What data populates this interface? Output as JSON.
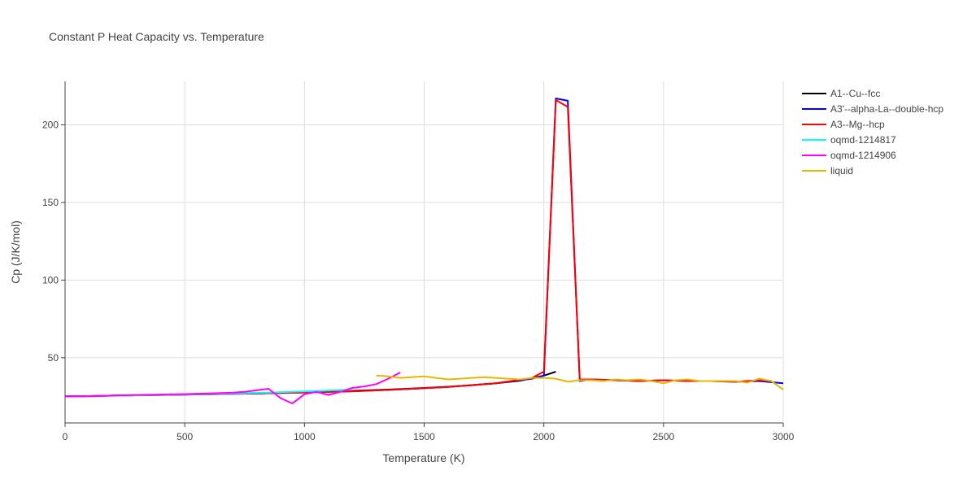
{
  "chart_data": {
    "type": "line",
    "title": "Constant P Heat Capacity vs. Temperature",
    "xlabel": "Temperature (K)",
    "ylabel": "Cp (J/K/mol)",
    "xlim": [
      0,
      3000
    ],
    "ylim": [
      8,
      228
    ],
    "xticks": [
      0,
      500,
      1000,
      1500,
      2000,
      2500,
      3000
    ],
    "yticks": [
      50,
      100,
      150,
      200
    ],
    "grid": true,
    "legend_position": "top-right",
    "series": [
      {
        "name": "A1--Cu--fcc",
        "color": "#000000",
        "x": [
          0,
          100,
          200,
          300,
          400,
          500,
          600,
          700,
          800,
          900,
          1000,
          1100,
          1200,
          1300,
          1400,
          1500,
          1600,
          1700,
          1800,
          1900,
          2000,
          2050
        ],
        "y": [
          25.2,
          25.3,
          25.6,
          25.8,
          26.1,
          26.3,
          26.6,
          26.9,
          27.2,
          27.5,
          27.9,
          28.3,
          28.7,
          29.2,
          29.8,
          30.5,
          31.3,
          32.3,
          33.5,
          35.2,
          38.5,
          41.0
        ]
      },
      {
        "name": "A3'--alpha-La--double-hcp",
        "color": "#0000ff",
        "x": [
          0,
          200,
          400,
          600,
          800,
          1000,
          1200,
          1400,
          1600,
          1800,
          1950,
          2000,
          2050,
          2100,
          2150,
          2200,
          2300,
          2400,
          2500,
          2600,
          2700,
          2800,
          2900,
          3000
        ],
        "y": [
          25.0,
          25.6,
          26.0,
          26.5,
          27.0,
          27.6,
          28.4,
          29.6,
          31.2,
          33.5,
          36.5,
          38.5,
          217.0,
          215.5,
          35.0,
          36.0,
          35.5,
          35.0,
          35.5,
          35.0,
          35.0,
          34.5,
          35.0,
          33.5
        ]
      },
      {
        "name": "A3--Mg--hcp",
        "color": "#ff0000",
        "x": [
          0,
          200,
          400,
          600,
          800,
          1000,
          1200,
          1400,
          1600,
          1800,
          1950,
          2000,
          2050,
          2100,
          2150,
          2200,
          2300,
          2400,
          2500,
          2600,
          2700,
          2800,
          2900,
          2950
        ],
        "y": [
          25.0,
          25.6,
          26.0,
          26.5,
          27.0,
          27.6,
          28.4,
          29.6,
          31.2,
          33.5,
          37.0,
          41.0,
          216.0,
          211.5,
          36.0,
          36.0,
          35.5,
          35.0,
          35.5,
          35.0,
          35.0,
          34.5,
          35.5,
          35.0
        ]
      },
      {
        "name": "oqmd-1214817",
        "color": "#00ffff",
        "x": [
          0,
          100,
          200,
          300,
          400,
          500,
          600,
          700,
          800,
          900,
          1000,
          1100,
          1200
        ],
        "y": [
          25.0,
          25.2,
          25.5,
          25.8,
          26.1,
          26.4,
          26.7,
          27.0,
          27.4,
          27.8,
          28.3,
          28.9,
          29.5
        ]
      },
      {
        "name": "oqmd-1214906",
        "color": "#ff00ff",
        "x": [
          0,
          100,
          200,
          300,
          400,
          500,
          600,
          700,
          750,
          800,
          850,
          900,
          950,
          1000,
          1050,
          1100,
          1150,
          1200,
          1250,
          1300,
          1350,
          1400
        ],
        "y": [
          25.0,
          25.2,
          25.6,
          26.0,
          26.3,
          26.6,
          27.0,
          27.5,
          28.0,
          29.0,
          30.0,
          24.0,
          20.5,
          26.5,
          28.0,
          26.0,
          28.0,
          30.5,
          31.5,
          33.0,
          36.5,
          40.5
        ]
      },
      {
        "name": "liquid",
        "color": "#e6b800",
        "x": [
          1300,
          1350,
          1400,
          1450,
          1500,
          1550,
          1600,
          1650,
          1700,
          1750,
          1800,
          1850,
          1900,
          1950,
          2000,
          2050,
          2100,
          2150,
          2200,
          2250,
          2300,
          2350,
          2400,
          2450,
          2500,
          2550,
          2600,
          2650,
          2700,
          2750,
          2800,
          2850,
          2900,
          2950,
          3000
        ],
        "y": [
          38.5,
          38.0,
          37.0,
          37.5,
          38.0,
          37.0,
          36.0,
          36.5,
          37.0,
          37.5,
          37.0,
          36.5,
          36.0,
          37.0,
          37.0,
          36.5,
          34.5,
          35.5,
          35.5,
          35.0,
          36.0,
          35.5,
          36.0,
          35.0,
          33.5,
          35.5,
          36.0,
          35.0,
          35.0,
          35.0,
          35.0,
          34.0,
          36.5,
          35.0,
          29.5
        ]
      }
    ]
  }
}
